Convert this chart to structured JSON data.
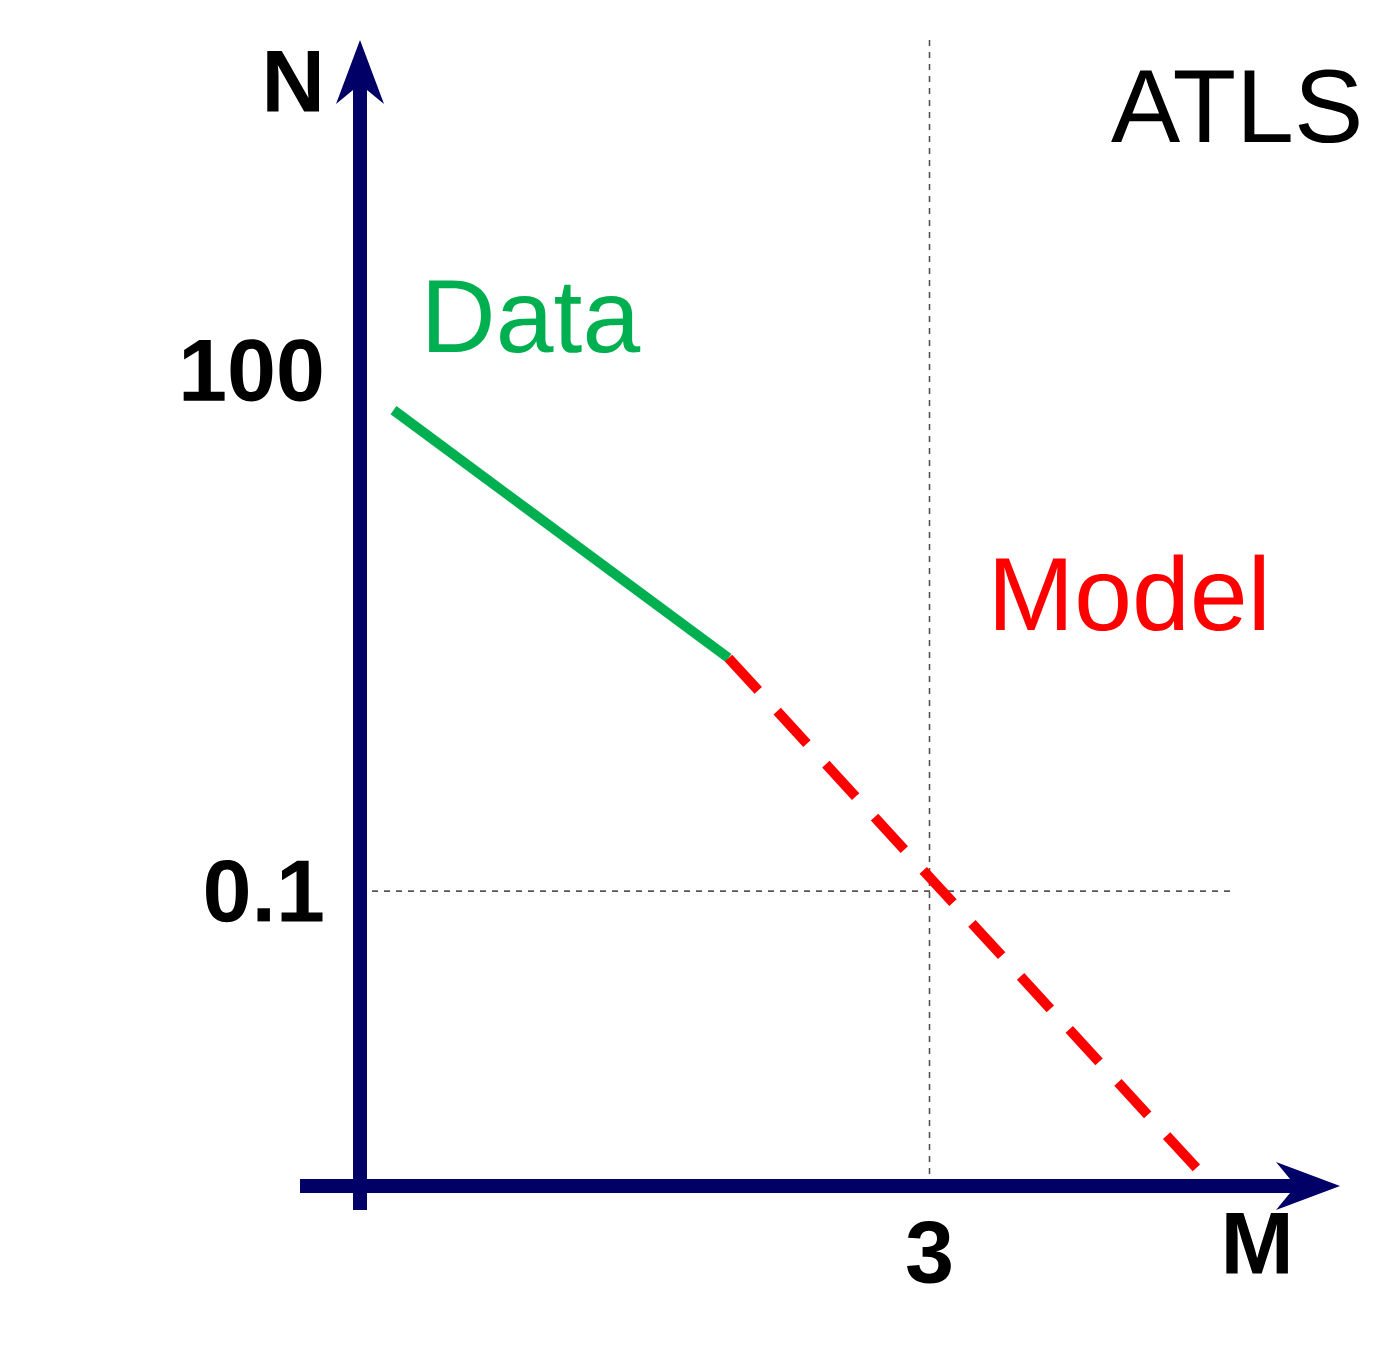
{
  "chart_data": {
    "type": "line",
    "title": "ATLS",
    "xlabel": "M",
    "ylabel": "N",
    "log": "y",
    "categories": [
      null,
      null,
      null,
      null,
      null,
      null,
      null,
      null,
      "3",
      null,
      null,
      null,
      null
    ],
    "ylim": [
      0.002,
      8000
    ],
    "yticks": [
      {
        "value": 0.1,
        "label": "0.1"
      },
      {
        "value": 100,
        "label": "100"
      }
    ],
    "grid": false,
    "legend": false,
    "marker": "none",
    "series": [
      {
        "name": "Data",
        "color": "#00b050",
        "line_style": "solid",
        "values": [
          59,
          null,
          null,
          null,
          null,
          2.2,
          null,
          null,
          null,
          null,
          null,
          null,
          null
        ]
      },
      {
        "name": "Model",
        "color": "#ff0000",
        "line_style": "dashed",
        "values": [
          null,
          null,
          null,
          null,
          null,
          2.2,
          null,
          null,
          null,
          null,
          null,
          null,
          0.0025
        ]
      }
    ],
    "ref_lines": [
      {
        "axis": "x",
        "value": "3",
        "color": "#555555",
        "line_style": "dashed"
      },
      {
        "axis": "y",
        "value": 0.1,
        "color": "#555555",
        "line_style": "dashed"
      }
    ]
  }
}
